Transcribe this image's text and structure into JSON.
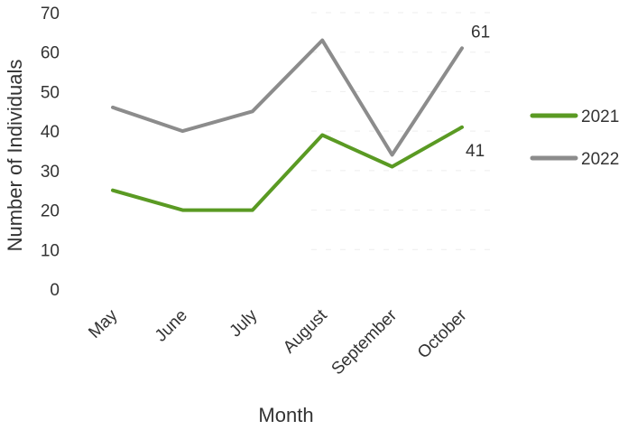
{
  "chart_data": {
    "type": "line",
    "categories": [
      "May",
      "June",
      "July",
      "August",
      "September",
      "October"
    ],
    "series": [
      {
        "name": "2021",
        "values": [
          25,
          20,
          20,
          39,
          31,
          41
        ],
        "color": "#5a9a23"
      },
      {
        "name": "2022",
        "values": [
          46,
          40,
          45,
          63,
          34,
          61
        ],
        "color": "#8c8c8c"
      }
    ],
    "data_labels": [
      {
        "series": "2021",
        "category": "October",
        "text": "41"
      },
      {
        "series": "2022",
        "category": "October",
        "text": "61"
      }
    ],
    "xlabel": "Month",
    "ylabel": "Number of Individuals",
    "ylim": [
      0,
      70
    ],
    "yticks": [
      0,
      10,
      20,
      30,
      40,
      50,
      60,
      70
    ],
    "grid": true,
    "legend": "right"
  }
}
